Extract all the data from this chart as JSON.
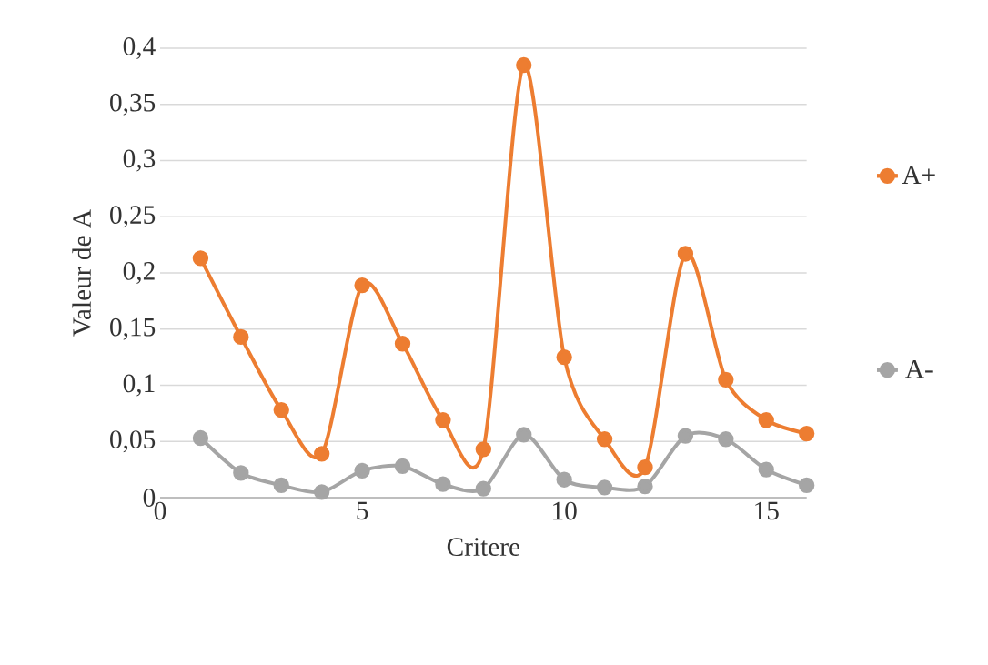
{
  "chart_data": {
    "type": "line",
    "xlabel": "Critere",
    "ylabel": "Valeur de A",
    "xlim": [
      0,
      16
    ],
    "xticks": [
      0,
      5,
      10,
      15
    ],
    "ylim": [
      0,
      0.4
    ],
    "yticks": [
      0,
      {
        "value": 0.05,
        "label": "0,05"
      },
      {
        "value": 0.1,
        "label": "0,1"
      },
      {
        "value": 0.15,
        "label": "0,15"
      },
      {
        "value": 0.2,
        "label": "0,2"
      },
      {
        "value": 0.25,
        "label": "0,25"
      },
      {
        "value": 0.3,
        "label": "0,3"
      },
      {
        "value": 0.35,
        "label": "0,35"
      },
      {
        "value": 0.4,
        "label": "0,4"
      }
    ],
    "x": [
      1,
      2,
      3,
      4,
      5,
      6,
      7,
      8,
      9,
      10,
      11,
      12,
      13,
      14,
      15,
      16
    ],
    "grid": "y",
    "legend": "right",
    "marker": "circle",
    "line_style": "solid",
    "series": [
      {
        "name": "A+",
        "color": "#ed7d31",
        "values": [
          0.213,
          0.143,
          0.078,
          0.039,
          0.189,
          0.137,
          0.069,
          0.043,
          0.385,
          0.125,
          0.052,
          0.027,
          0.217,
          0.105,
          0.069,
          0.057
        ]
      },
      {
        "name": "A-",
        "color": "#a5a5a5",
        "values": [
          0.053,
          0.022,
          0.011,
          0.005,
          0.024,
          0.028,
          0.012,
          0.008,
          0.056,
          0.016,
          0.009,
          0.01,
          0.055,
          0.052,
          0.025,
          0.011
        ]
      }
    ]
  }
}
